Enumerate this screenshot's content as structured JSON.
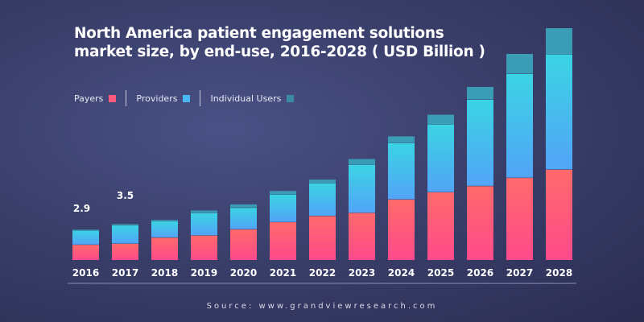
{
  "chart_data": {
    "type": "bar",
    "stacked": true,
    "title": "North America patient engagement solutions market size, by end-use, 2016-2028 ( USD Billion )",
    "title_lines": [
      "North America patient engagement solutions",
      "market size, by end-use, 2016-2028 ( USD Billion )"
    ],
    "categories": [
      "2016",
      "2017",
      "2018",
      "2019",
      "2020",
      "2021",
      "2022",
      "2023",
      "2024",
      "2025",
      "2026",
      "2027",
      "2028"
    ],
    "series": [
      {
        "name": "Payers",
        "color": "#ff5a7e",
        "values": [
          1.5,
          1.6,
          2.2,
          2.4,
          3.0,
          3.7,
          4.3,
          4.6,
          5.9,
          6.6,
          7.2,
          8.0,
          8.8
        ]
      },
      {
        "name": "Providers",
        "color": "#47b8f0",
        "values": [
          1.4,
          1.8,
          1.6,
          2.2,
          2.1,
          2.7,
          3.2,
          4.7,
          5.5,
          6.6,
          8.4,
          10.1,
          11.2
        ]
      },
      {
        "name": "Individual Users",
        "color": "#3a9db5",
        "values": [
          0.05,
          0.1,
          0.1,
          0.2,
          0.3,
          0.3,
          0.3,
          0.5,
          0.6,
          0.9,
          1.2,
          1.9,
          2.5
        ]
      }
    ],
    "data_labels": [
      {
        "category": "2016",
        "text": "2.9"
      },
      {
        "category": "2017",
        "text": "3.5"
      }
    ],
    "ylim": [
      0,
      23
    ],
    "grid": false,
    "legend_position": "top-left"
  },
  "source": "Source: www.grandviewresearch.com"
}
